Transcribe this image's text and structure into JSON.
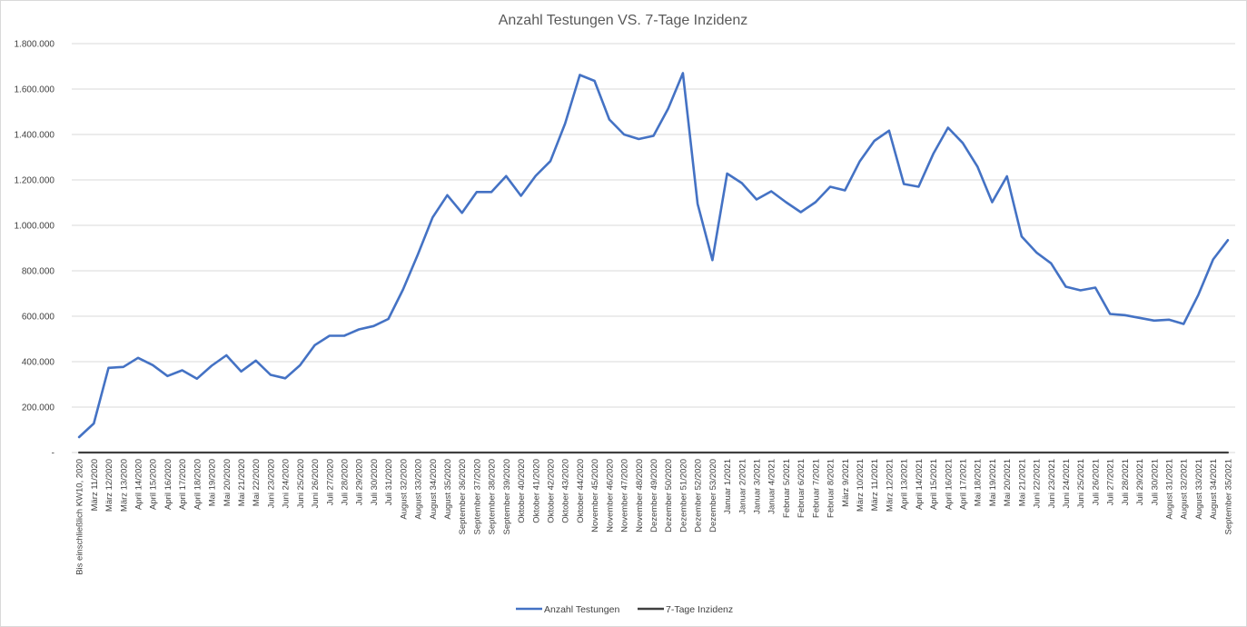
{
  "chart_data": {
    "type": "line",
    "title": "Anzahl Testungen VS. 7-Tage Inzidenz",
    "xlabel": "",
    "ylabel": "",
    "ylim": [
      0,
      1800000
    ],
    "yticks": [
      {
        "value": 0,
        "label": "-"
      },
      {
        "value": 200000,
        "label": "200.000"
      },
      {
        "value": 400000,
        "label": "400.000"
      },
      {
        "value": 600000,
        "label": "600.000"
      },
      {
        "value": 800000,
        "label": "800.000"
      },
      {
        "value": 1000000,
        "label": "1.000.000"
      },
      {
        "value": 1200000,
        "label": "1.200.000"
      },
      {
        "value": 1400000,
        "label": "1.400.000"
      },
      {
        "value": 1600000,
        "label": "1.600.000"
      },
      {
        "value": 1800000,
        "label": "1.800.000"
      }
    ],
    "grid": "horizontal",
    "legend_position": "bottom",
    "categories": [
      "Bis einschließlich KW10, 2020",
      "März 11/2020",
      "März 12/2020",
      "März 13/2020",
      "April 14/2020",
      "April 15/2020",
      "April 16/2020",
      "April 17/2020",
      "April 18/2020",
      "Mai 19/2020",
      "Mai 20/2020",
      "Mai 21/2020",
      "Mai 22/2020",
      "Juni 23/2020",
      "Juni 24/2020",
      "Juni 25/2020",
      "Juni 26/2020",
      "Juli 27/2020",
      "Juli 28/2020",
      "Juli 29/2020",
      "Juli 30/2020",
      "Juli 31/2020",
      "August 32/2020",
      "August 33/2020",
      "August 34/2020",
      "August 35/2020",
      "September 36/2020",
      "September 37/2020",
      "September 38/2020",
      "September 39/2020",
      "Oktober 40/2020",
      "Oktober 41/2020",
      "Oktober 42/2020",
      "Oktober 43/2020",
      "Oktober 44/2020",
      "November 45/2020",
      "November 46/2020",
      "November 47/2020",
      "November 48/2020",
      "Dezember 49/2020",
      "Dezember 50/2020",
      "Dezember 51/2020",
      "Dezember 52/2020",
      "Dezember 53/2020",
      "Januar 1/2021",
      "Januar 2/2021",
      "Januar 3/2021",
      "Januar 4/2021",
      "Februar 5/2021",
      "Februar 6/2021",
      "Februar 7/2021",
      "Februar 8/2021",
      "März 9/2021",
      "März 10/2021",
      "März 11/2021",
      "März 12/2021",
      "April 13/2021",
      "April 14/2021",
      "April 15/2021",
      "April 16/2021",
      "April 17/2021",
      "Mai 18/2021",
      "Mai 19/2021",
      "Mai 20/2021",
      "Mai 21/2021",
      "Juni 22/2021",
      "Juni 23/2021",
      "Juni 24/2021",
      "Juni 25/2021",
      "Juli 26/2021",
      "Juli 27/2021",
      "Juli 28/2021",
      "Juli 29/2021",
      "Juli 30/2021",
      "August 31/2021",
      "August 32/2021",
      "August 33/2021",
      "August 34/2021",
      "September 35/2021"
    ],
    "series": [
      {
        "name": "Anzahl Testungen",
        "color": "#4472c4",
        "values": [
          68000,
          128000,
          373000,
          377000,
          417000,
          385000,
          337000,
          362000,
          325000,
          382000,
          428000,
          357000,
          405000,
          342000,
          327000,
          384000,
          473000,
          514000,
          514000,
          542000,
          557000,
          588000,
          718000,
          872000,
          1035000,
          1133000,
          1055000,
          1147000,
          1147000,
          1217000,
          1130000,
          1218000,
          1283000,
          1448000,
          1662000,
          1636000,
          1466000,
          1400000,
          1380000,
          1394000,
          1514000,
          1670000,
          1095000,
          847000,
          1228000,
          1186000,
          1114000,
          1150000,
          1102000,
          1058000,
          1102000,
          1170000,
          1154000,
          1281000,
          1372000,
          1417000,
          1182000,
          1170000,
          1315000,
          1430000,
          1363000,
          1259000,
          1102000,
          1216000,
          951000,
          881000,
          833000,
          730000,
          714000,
          726000,
          610000,
          605000,
          593000,
          581000,
          585000,
          566000,
          695000,
          850000,
          935000
        ]
      },
      {
        "name": "7-Tage Inzidenz",
        "color": "#404040",
        "values": [
          0,
          0,
          1,
          1,
          1,
          1,
          1,
          1,
          1,
          1,
          1,
          1,
          1,
          1,
          1,
          1,
          1,
          1,
          1,
          1,
          1,
          1,
          1,
          1,
          1,
          1,
          1,
          1,
          1,
          1,
          1,
          1,
          1,
          1,
          1,
          1,
          1,
          1,
          1,
          1,
          1,
          1,
          1,
          1,
          1,
          1,
          1,
          1,
          1,
          1,
          1,
          1,
          1,
          1,
          1,
          1,
          1,
          1,
          1,
          1,
          1,
          1,
          1,
          1,
          1,
          1,
          1,
          1,
          1,
          1,
          1,
          1,
          1,
          1,
          1,
          1,
          1,
          1,
          1
        ]
      }
    ]
  }
}
